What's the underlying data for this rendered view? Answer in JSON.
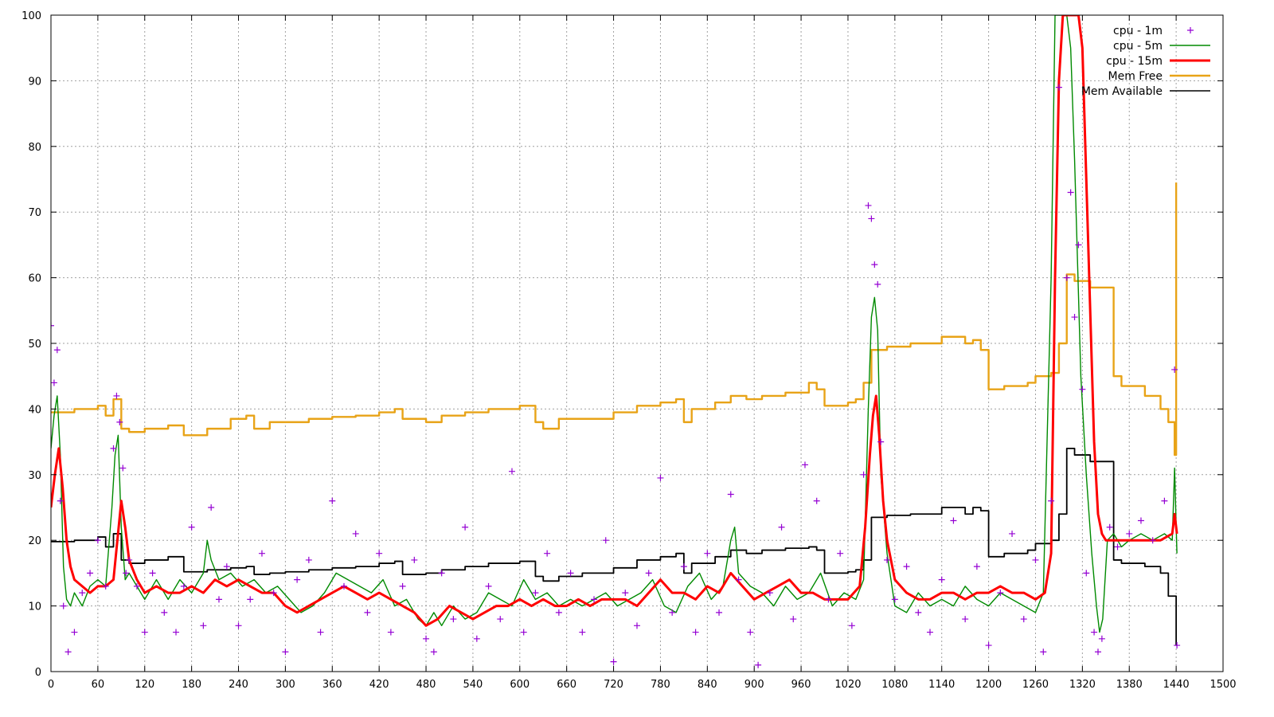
{
  "chart_data": {
    "type": "line",
    "title": "",
    "xlabel": "",
    "ylabel": "",
    "xlim": [
      0,
      1500
    ],
    "ylim": [
      0,
      100
    ],
    "xticks": [
      0,
      60,
      120,
      180,
      240,
      300,
      360,
      420,
      480,
      540,
      600,
      660,
      720,
      780,
      840,
      900,
      960,
      1020,
      1080,
      1140,
      1200,
      1260,
      1320,
      1380,
      1440,
      1500
    ],
    "yticks": [
      0,
      10,
      20,
      30,
      40,
      50,
      60,
      70,
      80,
      90,
      100
    ],
    "grid": true,
    "legend_position": "top-right",
    "series": [
      {
        "name": "cpu - 1m",
        "style": "points",
        "marker": "+",
        "color": "#9400d3",
        "x": [
          0,
          4,
          8,
          12,
          16,
          22,
          30,
          40,
          50,
          60,
          70,
          80,
          84,
          88,
          92,
          96,
          100,
          110,
          120,
          130,
          145,
          160,
          170,
          180,
          195,
          205,
          215,
          225,
          240,
          255,
          270,
          285,
          300,
          315,
          330,
          345,
          360,
          375,
          390,
          405,
          420,
          435,
          450,
          465,
          480,
          490,
          500,
          515,
          530,
          545,
          560,
          575,
          590,
          605,
          620,
          635,
          650,
          665,
          680,
          695,
          710,
          720,
          735,
          750,
          765,
          780,
          795,
          810,
          825,
          840,
          855,
          870,
          880,
          895,
          905,
          920,
          935,
          950,
          965,
          980,
          995,
          1010,
          1025,
          1040,
          1046,
          1050,
          1054,
          1058,
          1062,
          1070,
          1080,
          1095,
          1110,
          1125,
          1140,
          1155,
          1170,
          1185,
          1200,
          1215,
          1230,
          1245,
          1260,
          1270,
          1280,
          1290,
          1300,
          1305,
          1310,
          1315,
          1320,
          1325,
          1335,
          1340,
          1345,
          1355,
          1365,
          1380,
          1395,
          1410,
          1425,
          1438,
          1441
        ],
        "y": [
          52.7,
          44,
          49,
          26,
          10,
          3,
          6,
          12,
          15,
          20,
          13,
          34,
          42,
          38,
          31,
          15,
          17,
          13,
          6,
          15,
          9,
          6,
          13,
          22,
          7,
          25,
          11,
          16,
          7,
          11,
          18,
          12,
          3,
          14,
          17,
          6,
          26,
          13,
          21,
          9,
          18,
          6,
          13,
          17,
          5,
          3,
          15,
          8,
          22,
          5,
          13,
          8,
          30.5,
          6,
          12,
          18,
          9,
          15,
          6,
          11,
          20,
          1.5,
          12,
          7,
          15,
          29.5,
          9,
          16,
          6,
          18,
          9,
          27,
          14,
          6,
          1,
          12,
          22,
          8,
          31.5,
          26,
          11,
          18,
          7,
          30,
          71,
          69,
          62,
          59,
          35,
          17,
          11,
          16,
          9,
          6,
          14,
          23,
          8,
          16,
          4,
          12,
          21,
          8,
          17,
          3,
          26,
          89,
          60,
          73,
          54,
          65,
          43,
          15,
          6,
          3,
          5,
          22,
          19,
          21,
          23,
          20,
          26,
          46,
          4
        ]
      },
      {
        "name": "cpu -  5m",
        "style": "line",
        "color": "#008a00",
        "x": [
          0,
          4,
          8,
          12,
          16,
          20,
          25,
          30,
          40,
          50,
          60,
          70,
          78,
          82,
          86,
          90,
          95,
          100,
          110,
          120,
          135,
          150,
          165,
          180,
          195,
          200,
          205,
          215,
          230,
          245,
          260,
          275,
          290,
          305,
          320,
          335,
          350,
          365,
          380,
          395,
          410,
          425,
          440,
          455,
          470,
          480,
          490,
          500,
          515,
          530,
          545,
          560,
          575,
          590,
          605,
          620,
          635,
          650,
          665,
          680,
          695,
          710,
          725,
          740,
          755,
          770,
          785,
          800,
          815,
          830,
          845,
          860,
          870,
          875,
          880,
          895,
          910,
          925,
          940,
          955,
          970,
          985,
          1000,
          1015,
          1030,
          1040,
          1046,
          1050,
          1054,
          1058,
          1062,
          1070,
          1080,
          1095,
          1110,
          1125,
          1140,
          1155,
          1170,
          1185,
          1200,
          1215,
          1230,
          1245,
          1260,
          1270,
          1280,
          1285,
          1290,
          1295,
          1300,
          1305,
          1310,
          1318,
          1325,
          1332,
          1338,
          1342,
          1346,
          1352,
          1360,
          1370,
          1380,
          1395,
          1410,
          1425,
          1435,
          1438,
          1441
        ],
        "y": [
          34,
          39,
          42,
          33,
          16,
          11,
          10,
          12,
          10,
          13,
          14,
          13,
          25,
          33,
          36,
          22,
          14,
          15,
          13,
          11,
          14,
          11,
          14,
          12,
          15,
          20,
          17,
          14,
          15,
          13,
          14,
          12,
          13,
          11,
          9,
          10,
          12,
          15,
          14,
          13,
          12,
          14,
          10,
          11,
          8,
          7,
          9,
          7,
          10,
          8,
          9,
          12,
          11,
          10,
          14,
          11,
          12,
          10,
          11,
          10,
          11,
          12,
          10,
          11,
          12,
          14,
          10,
          9,
          13,
          15,
          11,
          13,
          20,
          22,
          15,
          13,
          12,
          10,
          13,
          11,
          12,
          15,
          10,
          12,
          11,
          14,
          40,
          54,
          57,
          52,
          30,
          18,
          10,
          9,
          12,
          10,
          11,
          10,
          13,
          11,
          10,
          12,
          11,
          10,
          9,
          12,
          60,
          100,
          100,
          100,
          100,
          95,
          78,
          45,
          30,
          18,
          10,
          6,
          8,
          20,
          21,
          19,
          20,
          21,
          20,
          21,
          20,
          31,
          18
        ]
      },
      {
        "name": "cpu - 15m",
        "style": "line",
        "color": "#ff0000",
        "x": [
          0,
          5,
          10,
          15,
          20,
          25,
          30,
          40,
          50,
          60,
          70,
          80,
          85,
          90,
          95,
          100,
          110,
          120,
          135,
          150,
          165,
          180,
          195,
          210,
          225,
          240,
          255,
          270,
          285,
          300,
          315,
          330,
          345,
          360,
          375,
          390,
          405,
          420,
          435,
          450,
          465,
          480,
          495,
          510,
          525,
          540,
          555,
          570,
          585,
          600,
          615,
          630,
          645,
          660,
          675,
          690,
          705,
          720,
          735,
          750,
          765,
          780,
          795,
          810,
          825,
          840,
          855,
          870,
          885,
          900,
          915,
          930,
          945,
          960,
          975,
          990,
          1005,
          1020,
          1035,
          1042,
          1048,
          1052,
          1056,
          1060,
          1065,
          1070,
          1080,
          1095,
          1110,
          1125,
          1140,
          1155,
          1170,
          1185,
          1200,
          1215,
          1230,
          1245,
          1260,
          1272,
          1280,
          1285,
          1290,
          1295,
          1300,
          1305,
          1310,
          1315,
          1320,
          1325,
          1330,
          1335,
          1340,
          1345,
          1350,
          1360,
          1380,
          1400,
          1420,
          1435,
          1438,
          1441
        ],
        "y": [
          25,
          30,
          34,
          28,
          20,
          16,
          14,
          13,
          12,
          13,
          13,
          14,
          20,
          26,
          22,
          17,
          14,
          12,
          13,
          12,
          12,
          13,
          12,
          14,
          13,
          14,
          13,
          12,
          12,
          10,
          9,
          10,
          11,
          12,
          13,
          12,
          11,
          12,
          11,
          10,
          9,
          7,
          8,
          10,
          9,
          8,
          9,
          10,
          10,
          11,
          10,
          11,
          10,
          10,
          11,
          10,
          11,
          11,
          11,
          10,
          12,
          14,
          12,
          12,
          11,
          13,
          12,
          15,
          13,
          11,
          12,
          13,
          14,
          12,
          12,
          11,
          11,
          11,
          13,
          22,
          33,
          39,
          42,
          36,
          26,
          20,
          14,
          12,
          11,
          11,
          12,
          12,
          11,
          12,
          12,
          13,
          12,
          12,
          11,
          12,
          18,
          60,
          90,
          100,
          100,
          100,
          100,
          100,
          95,
          75,
          55,
          35,
          24,
          21,
          20,
          20,
          20,
          20,
          20,
          21,
          24,
          21
        ]
      },
      {
        "name": "Mem Free",
        "style": "step",
        "color": "#e8a317",
        "x": [
          0,
          30,
          60,
          70,
          80,
          90,
          100,
          120,
          150,
          170,
          200,
          230,
          250,
          260,
          280,
          300,
          330,
          360,
          390,
          420,
          440,
          450,
          480,
          500,
          530,
          560,
          600,
          620,
          630,
          650,
          680,
          720,
          750,
          780,
          800,
          810,
          820,
          850,
          870,
          890,
          910,
          940,
          970,
          980,
          990,
          1020,
          1030,
          1040,
          1050,
          1070,
          1100,
          1140,
          1170,
          1180,
          1190,
          1200,
          1220,
          1250,
          1260,
          1280,
          1290,
          1300,
          1310,
          1330,
          1350,
          1360,
          1370,
          1400,
          1420,
          1430,
          1438,
          1440
        ],
        "y": [
          39.5,
          40,
          40.5,
          39,
          41.5,
          37,
          36.5,
          37,
          37.5,
          36,
          37,
          38.5,
          39,
          37,
          38,
          38,
          38.5,
          38.8,
          39,
          39.5,
          40,
          38.5,
          38,
          39,
          39.5,
          40,
          40.5,
          38,
          37,
          38.5,
          38.5,
          39.5,
          40.5,
          41,
          41.5,
          38,
          40,
          41,
          42,
          41.5,
          42,
          42.5,
          44,
          43,
          40.5,
          41,
          41.5,
          44,
          49,
          49.5,
          50,
          51,
          50,
          50.5,
          49,
          43,
          43.5,
          44,
          45,
          45.5,
          50,
          60.5,
          59.5,
          58.5,
          58.5,
          45,
          43.5,
          42,
          40,
          38,
          33,
          74.5
        ]
      },
      {
        "name": "Mem Available",
        "style": "step",
        "color": "#000000",
        "x": [
          0,
          30,
          60,
          70,
          80,
          90,
          100,
          120,
          150,
          170,
          200,
          230,
          250,
          260,
          280,
          300,
          330,
          360,
          390,
          420,
          440,
          450,
          480,
          500,
          530,
          560,
          600,
          620,
          630,
          650,
          680,
          720,
          750,
          780,
          800,
          810,
          820,
          850,
          870,
          890,
          910,
          940,
          970,
          980,
          990,
          1020,
          1030,
          1040,
          1050,
          1070,
          1100,
          1140,
          1170,
          1180,
          1190,
          1200,
          1220,
          1250,
          1260,
          1280,
          1290,
          1300,
          1310,
          1330,
          1350,
          1360,
          1370,
          1400,
          1420,
          1430,
          1438,
          1440
        ],
        "y": [
          19.8,
          20,
          20.5,
          19,
          21,
          17,
          16.5,
          17,
          17.5,
          15.2,
          15.5,
          15.8,
          16,
          14.8,
          15,
          15.2,
          15.5,
          15.8,
          16,
          16.5,
          16.8,
          14.8,
          15,
          15.5,
          16,
          16.5,
          16.8,
          14.5,
          13.8,
          14.5,
          15,
          15.8,
          17,
          17.5,
          18,
          15,
          16.5,
          17.5,
          18.5,
          18,
          18.5,
          18.8,
          19,
          18.5,
          15,
          15.2,
          15.5,
          17,
          23.5,
          23.8,
          24,
          25,
          24,
          25,
          24.5,
          17.5,
          18,
          18.5,
          19.5,
          20,
          24,
          34,
          33,
          32,
          32,
          17,
          16.5,
          16,
          15,
          11.5,
          11.5,
          4
        ]
      }
    ]
  }
}
